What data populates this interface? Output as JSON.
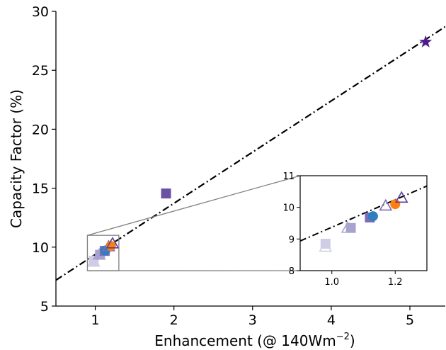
{
  "chart_data": {
    "type": "scatter",
    "xlabel_main": "Enhancement (@ 140Wm",
    "xlabel_sup": "−2",
    "xlabel_close": ")",
    "ylabel": "Capacity Factor (%)",
    "xlim": [
      0.5,
      5.45
    ],
    "ylim": [
      5,
      30
    ],
    "xticks": [
      1,
      2,
      3,
      4,
      5
    ],
    "yticks": [
      5,
      10,
      15,
      20,
      25,
      30
    ],
    "grid": false,
    "fit_line": {
      "style": "dash-dot",
      "color": "#000000",
      "x": [
        0.5,
        5.45
      ],
      "y": [
        7.2,
        28.7
      ]
    },
    "points": [
      {
        "x": 0.98,
        "y": 8.85,
        "marker": "square",
        "color": "#cfcde6"
      },
      {
        "x": 0.98,
        "y": 8.75,
        "marker": "triangle-open",
        "color": "#cfcde6"
      },
      {
        "x": 1.05,
        "y": 9.35,
        "marker": "triangle-open",
        "color": "#a7a3cf"
      },
      {
        "x": 1.06,
        "y": 9.35,
        "marker": "square",
        "color": "#a7a3cf"
      },
      {
        "x": 1.12,
        "y": 9.68,
        "marker": "square",
        "color": "#7d6cb7"
      },
      {
        "x": 1.13,
        "y": 9.72,
        "marker": "circle",
        "color": "#2e7fc0"
      },
      {
        "x": 1.17,
        "y": 10.05,
        "marker": "triangle-open",
        "color": "#7d6cb7"
      },
      {
        "x": 1.2,
        "y": 10.1,
        "marker": "circle",
        "color": "#ff7f0e"
      },
      {
        "x": 1.22,
        "y": 10.3,
        "marker": "triangle-open",
        "color": "#5a3f99"
      },
      {
        "x": 1.9,
        "y": 14.55,
        "marker": "square",
        "color": "#6a51a3"
      },
      {
        "x": 5.2,
        "y": 27.4,
        "marker": "star",
        "color": "#4b1d8c"
      }
    ],
    "inset": {
      "xlim": [
        0.9,
        1.3
      ],
      "ylim": [
        8,
        11
      ],
      "xticks": [
        1.0,
        1.2
      ],
      "xtick_labels": [
        "1.0",
        "1.2"
      ],
      "yticks": [
        8,
        9,
        10,
        11
      ],
      "source_box": {
        "xlim": [
          0.9,
          1.3
        ],
        "ylim": [
          8,
          11
        ]
      }
    }
  }
}
